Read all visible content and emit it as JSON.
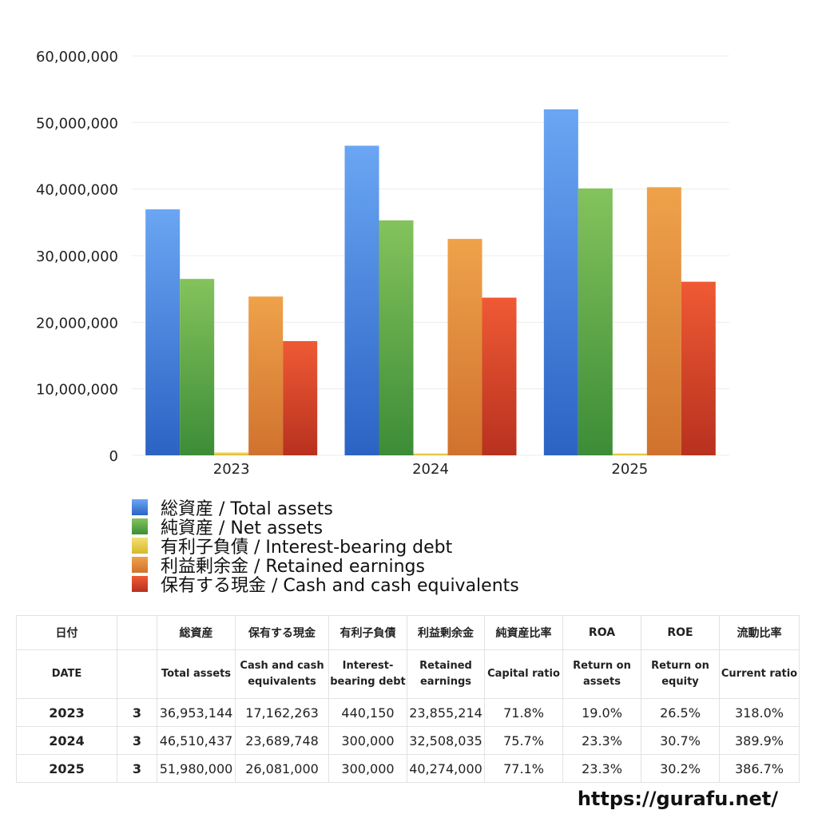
{
  "chart_data": {
    "type": "bar",
    "categories": [
      "2023",
      "2024",
      "2025"
    ],
    "series": [
      {
        "name": "総資産 / Total assets",
        "values": [
          36953144,
          46510437,
          51980000
        ],
        "color_top": "#6aa6f3",
        "color_bottom": "#2b63c4"
      },
      {
        "name": "純資産 / Net assets",
        "values": [
          26500000,
          35300000,
          40100000
        ],
        "color_top": "#84c35c",
        "color_bottom": "#3c8c37"
      },
      {
        "name": "有利子負債 / Interest-bearing debt",
        "values": [
          440150,
          300000,
          300000
        ],
        "color_top": "#f4df73",
        "color_bottom": "#d8b82b"
      },
      {
        "name": "利益剰余金 / Retained earnings",
        "values": [
          23855214,
          32508035,
          40274000
        ],
        "color_top": "#efa24a",
        "color_bottom": "#d0722e"
      },
      {
        "name": "保有する現金 /  Cash and cash equivalents",
        "values": [
          17162263,
          23689748,
          26081000
        ],
        "color_top": "#ef5a34",
        "color_bottom": "#b8311f"
      }
    ],
    "ylim": [
      0,
      60000000
    ],
    "yticks": [
      "0",
      "10,000,000",
      "20,000,000",
      "30,000,000",
      "40,000,000",
      "50,000,000",
      "60,000,000"
    ],
    "grid": true,
    "legend_position": "bottom"
  },
  "table": {
    "headers_ja": [
      "日付",
      "",
      "総資産",
      "保有する現金",
      "有利子負債",
      "利益剰余金",
      "純資産比率",
      "ROA",
      "ROE",
      "流動比率"
    ],
    "headers_en": [
      "DATE",
      "",
      "Total assets",
      "Cash and cash equivalents",
      "Interest-bearing debt",
      "Retained earnings",
      "Capital ratio",
      "Return on assets",
      "Return on equity",
      "Current ratio"
    ],
    "rows": [
      [
        "2023",
        "3",
        "36,953,144",
        "17,162,263",
        "440,150",
        "23,855,214",
        "71.8%",
        "19.0%",
        "26.5%",
        "318.0%"
      ],
      [
        "2024",
        "3",
        "46,510,437",
        "23,689,748",
        "300,000",
        "32,508,035",
        "75.7%",
        "23.3%",
        "30.7%",
        "389.9%"
      ],
      [
        "2025",
        "3",
        "51,980,000",
        "26,081,000",
        "300,000",
        "40,274,000",
        "77.1%",
        "23.3%",
        "30.2%",
        "386.7%"
      ]
    ]
  },
  "footer": {
    "url": "https://gurafu.net/"
  }
}
